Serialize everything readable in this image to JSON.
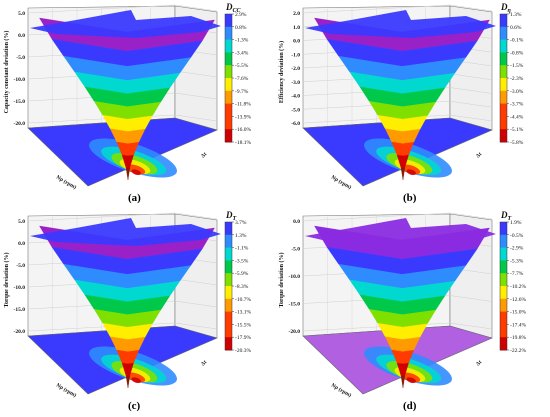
{
  "panels": [
    {
      "caption": "(a)",
      "ylabel": "Capacity constant deviation (%)",
      "colorbar_title_main": "D",
      "colorbar_title_sub": "CC",
      "colorbar_ticks": [
        "2.9%",
        "0.8%",
        "-1.3%",
        "-3.4%",
        "-5.5%",
        "-7.6%",
        "-9.7%",
        "-11.8%",
        "-13.9%",
        "-16.0%",
        "-18.1%"
      ],
      "z_ticks": [
        "5.0",
        "0.0",
        "-5.0",
        "-10.0",
        "-15.0",
        "-20.0"
      ],
      "x_axis_label": "Np (rpm)",
      "y_axis_label": "Δt",
      "chart_data": {
        "type": "surface3d",
        "z_range": [
          -20.0,
          5.0
        ],
        "colorscale_range_percent": [
          -18.1,
          2.9
        ],
        "min_deviation": -18.1,
        "max_deviation": 2.9
      }
    },
    {
      "caption": "(b)",
      "ylabel": "Efficiency deviation (%)",
      "colorbar_title_main": "D",
      "colorbar_title_sub": "η",
      "colorbar_ticks": [
        "1.3%",
        "0.6%",
        "-0.1%",
        "-0.8%",
        "-1.5%",
        "-2.3%",
        "-3.0%",
        "-3.7%",
        "-4.4%",
        "-5.1%",
        "-5.8%"
      ],
      "z_ticks": [
        "2.0",
        "1.0",
        "0.0",
        "-1.0",
        "-2.0",
        "-3.0",
        "-4.0",
        "-5.0",
        "-6.0"
      ],
      "x_axis_label": "Np (rpm)",
      "y_axis_label": "Δt",
      "chart_data": {
        "type": "surface3d",
        "z_range": [
          -6.0,
          2.0
        ],
        "colorscale_range_percent": [
          -5.8,
          1.3
        ],
        "min_deviation": -5.8,
        "max_deviation": 1.3
      }
    },
    {
      "caption": "(c)",
      "ylabel": "Torque deviation (%)",
      "colorbar_title_main": "D",
      "colorbar_title_sub": "T",
      "colorbar_ticks": [
        "3.7%",
        "1.3%",
        "-1.1%",
        "-3.5%",
        "-5.9%",
        "-8.3%",
        "-10.7%",
        "-13.1%",
        "-15.5%",
        "-17.9%",
        "-20.3%"
      ],
      "z_ticks": [
        "5.0",
        "0.0",
        "-5.0",
        "-10.0",
        "-15.0",
        "-20.0"
      ],
      "x_axis_label": "Np (rpm)",
      "y_axis_label": "Δt",
      "chart_data": {
        "type": "surface3d",
        "z_range": [
          -20.0,
          5.0
        ],
        "colorscale_range_percent": [
          -20.3,
          3.7
        ],
        "min_deviation": -20.3,
        "max_deviation": 3.7
      }
    },
    {
      "caption": "(d)",
      "ylabel": "Torque deviation (%)",
      "colorbar_title_main": "D",
      "colorbar_title_sub": "T",
      "colorbar_ticks": [
        "1.9%",
        "-0.5%",
        "-2.9%",
        "-5.3%",
        "-7.7%",
        "-10.2%",
        "-12.6%",
        "-15.0%",
        "-17.4%",
        "-19.8%",
        "-22.2%"
      ],
      "z_ticks": [
        "0.0",
        "-5.0",
        "-10.0",
        "-15.0",
        "-20.0"
      ],
      "x_axis_label": "Np (rpm)",
      "y_axis_label": "Δt",
      "chart_data": {
        "type": "surface3d",
        "z_range": [
          -22.5,
          2.5
        ],
        "colorscale_range_percent": [
          -22.2,
          1.9
        ],
        "min_deviation": -22.2,
        "max_deviation": 1.9
      }
    }
  ],
  "colorscale": [
    "#8b1a00",
    "#d00000",
    "#ff3b00",
    "#ff9a00",
    "#ffee00",
    "#7fe000",
    "#00c84a",
    "#00d8d0",
    "#2f8cff",
    "#3a3aff",
    "#9a20c8"
  ]
}
